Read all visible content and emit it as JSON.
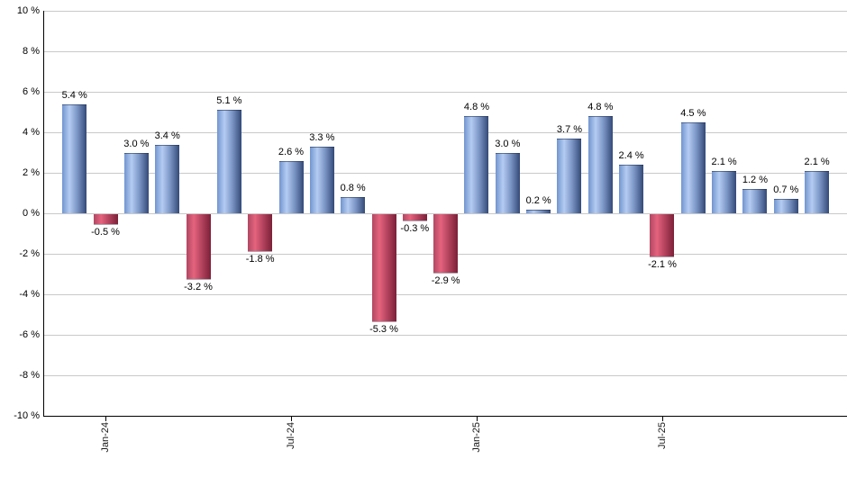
{
  "chart_data": {
    "type": "bar",
    "title": "",
    "xlabel": "",
    "ylabel": "",
    "ylim": [
      -10,
      10
    ],
    "ytick_step": 2,
    "ytick_labels": [
      "10 %",
      "8 %",
      "6 %",
      "4 %",
      "2 %",
      "0 %",
      "-2 %",
      "-4 %",
      "-6 %",
      "-8 %",
      "-10 %"
    ],
    "values": [
      5.4,
      -0.5,
      3.0,
      3.4,
      -3.2,
      5.1,
      -1.8,
      2.6,
      3.3,
      0.8,
      -5.3,
      -0.3,
      -2.9,
      4.8,
      3.0,
      0.2,
      3.7,
      4.8,
      2.4,
      -2.1,
      4.5,
      2.1,
      1.2,
      0.7,
      2.1
    ],
    "bar_labels": [
      "5.4 %",
      "-0.5 %",
      "3.0 %",
      "3.4 %",
      "-3.2 %",
      "5.1 %",
      "-1.8 %",
      "2.6 %",
      "3.3 %",
      "0.8 %",
      "-5.3 %",
      "-0.3 %",
      "-2.9 %",
      "4.8 %",
      "3.0 %",
      "0.2 %",
      "3.7 %",
      "4.8 %",
      "2.4 %",
      "-2.1 %",
      "4.5 %",
      "2.1 %",
      "1.2 %",
      "0.7 %",
      "2.1 %"
    ],
    "x_ticks": [
      {
        "label": "Jan-24",
        "bar_index": 1
      },
      {
        "label": "Jul-24",
        "bar_index": 7
      },
      {
        "label": "Jan-25",
        "bar_index": 13
      },
      {
        "label": "Jul-25",
        "bar_index": 19
      }
    ],
    "grid": true,
    "legend": "none",
    "colors": {
      "positive_bar_gradient": [
        "#7295cf",
        "#b4ccf2",
        "#7b95c5",
        "#344a78"
      ],
      "negative_bar_gradient": [
        "#b04863",
        "#e5637d",
        "#b4435e",
        "#7c2038"
      ],
      "gridline": "#c9c9c9",
      "axis": "#000000",
      "label_text": "#000000"
    }
  }
}
